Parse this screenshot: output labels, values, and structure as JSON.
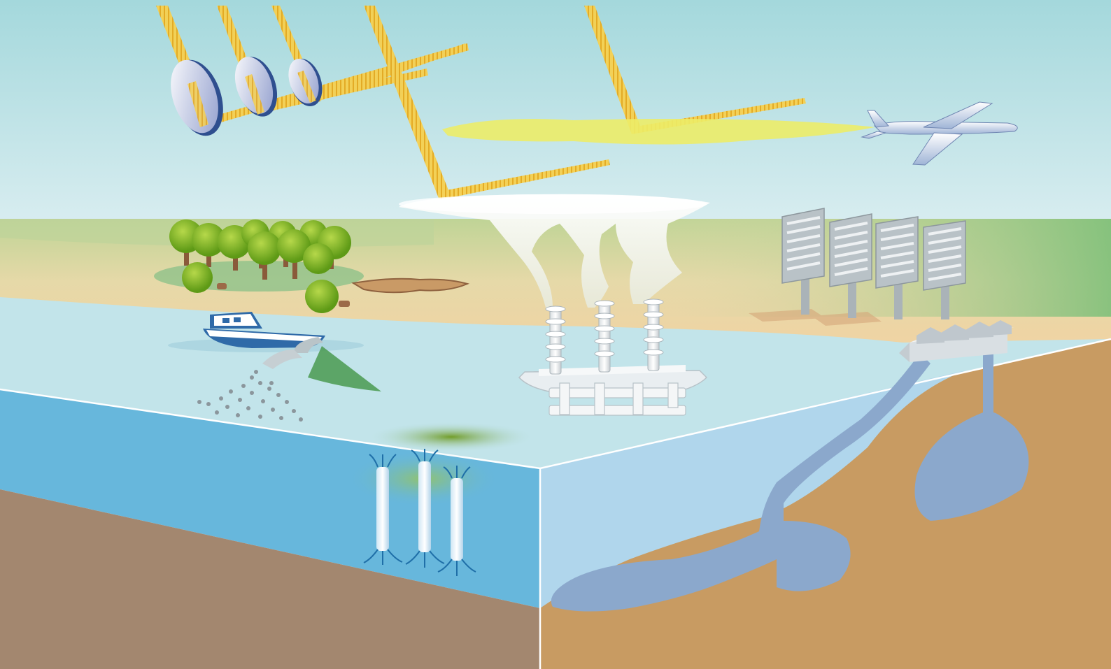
{
  "diagram": {
    "kind": "geoengineering-illustration",
    "text_labels": []
  },
  "colors": {
    "sky_top": "#a6d9dc",
    "sky_bottom": "#d6ecef",
    "land_green": "#8cc27a",
    "sand": "#f0d3a3",
    "sea_surface": "#bfe3ea",
    "ocean_side": "#66b7dd",
    "seabed": "#a28671",
    "soil_side": "#c59a62",
    "groundwater": "#8ba8cc",
    "sun_ray": "#f2c230",
    "haze": "#eaea6a",
    "tree_green": "#78b52a"
  },
  "icons": {
    "space_mirrors": "mirror-disc-icon",
    "aerosol_plane": "airplane-icon",
    "cloud_ships": "spray-ship-icon",
    "ocean_fertilizing_ship": "ship-icon",
    "forest": "tree-icon",
    "biochar_pit": "pit-icon",
    "air_capture_units": "air-capture-panel-icon",
    "ccs_plant": "factory-icon",
    "ocean_pipes": "ocean-pipe-icon"
  }
}
